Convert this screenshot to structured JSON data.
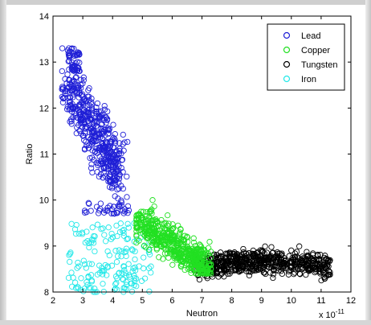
{
  "chart_data": {
    "type": "scatter",
    "xlabel": "Neutron",
    "ylabel": "Ratio",
    "x_multiplier_label": "x 10",
    "x_multiplier_exponent": "-11",
    "xlim": [
      2,
      12
    ],
    "ylim": [
      8,
      14
    ],
    "x_ticks": [
      "2",
      "3",
      "4",
      "5",
      "6",
      "7",
      "8",
      "9",
      "10",
      "11",
      "12"
    ],
    "y_ticks": [
      "8",
      "9",
      "10",
      "11",
      "12",
      "13",
      "14"
    ],
    "grid": false,
    "legend_position": "top-right",
    "series": [
      {
        "name": "Lead",
        "color": "#1f1fd6",
        "x_range": [
          2.3,
          4.6
        ],
        "y_range": [
          9.7,
          13.3
        ],
        "description_points": [
          [
            2.5,
            13.3
          ],
          [
            2.6,
            12.9
          ],
          [
            2.7,
            12.5
          ],
          [
            2.8,
            12.0
          ],
          [
            3.0,
            11.6
          ],
          [
            3.2,
            11.2
          ],
          [
            3.5,
            10.9
          ],
          [
            3.8,
            10.7
          ],
          [
            4.2,
            10.4
          ],
          [
            4.5,
            10.2
          ],
          [
            3.0,
            9.8
          ],
          [
            3.5,
            9.9
          ],
          [
            4.0,
            9.8
          ],
          [
            4.4,
            9.7
          ]
        ]
      },
      {
        "name": "Copper",
        "color": "#22e022",
        "x_range": [
          4.8,
          7.3
        ],
        "y_range": [
          8.4,
          10.0
        ],
        "description_points": [
          [
            5.0,
            9.6
          ],
          [
            5.3,
            9.3
          ],
          [
            5.6,
            9.5
          ],
          [
            5.9,
            9.2
          ],
          [
            6.2,
            9.0
          ],
          [
            6.5,
            9.0
          ],
          [
            6.8,
            8.8
          ],
          [
            7.1,
            8.6
          ],
          [
            5.5,
            9.9
          ],
          [
            6.0,
            9.7
          ]
        ]
      },
      {
        "name": "Tungsten",
        "color": "#000000",
        "x_range": [
          6.7,
          11.3
        ],
        "y_range": [
          8.1,
          9.0
        ],
        "description_points": [
          [
            7.0,
            8.6
          ],
          [
            7.5,
            8.5
          ],
          [
            8.0,
            8.6
          ],
          [
            8.5,
            8.7
          ],
          [
            9.0,
            8.7
          ],
          [
            9.5,
            8.6
          ],
          [
            10.0,
            8.6
          ],
          [
            10.5,
            8.55
          ],
          [
            11.0,
            8.5
          ],
          [
            11.2,
            8.45
          ]
        ]
      },
      {
        "name": "Iron",
        "color": "#22e8e8",
        "x_range": [
          2.4,
          5.3
        ],
        "y_range": [
          8.0,
          9.6
        ],
        "description_points": [
          [
            2.6,
            8.2
          ],
          [
            2.8,
            9.3
          ],
          [
            3.0,
            8.6
          ],
          [
            3.3,
            8.9
          ],
          [
            3.6,
            8.3
          ],
          [
            3.9,
            8.8
          ],
          [
            4.2,
            8.4
          ],
          [
            4.5,
            8.6
          ],
          [
            4.8,
            8.2
          ],
          [
            5.1,
            8.3
          ]
        ]
      }
    ]
  }
}
